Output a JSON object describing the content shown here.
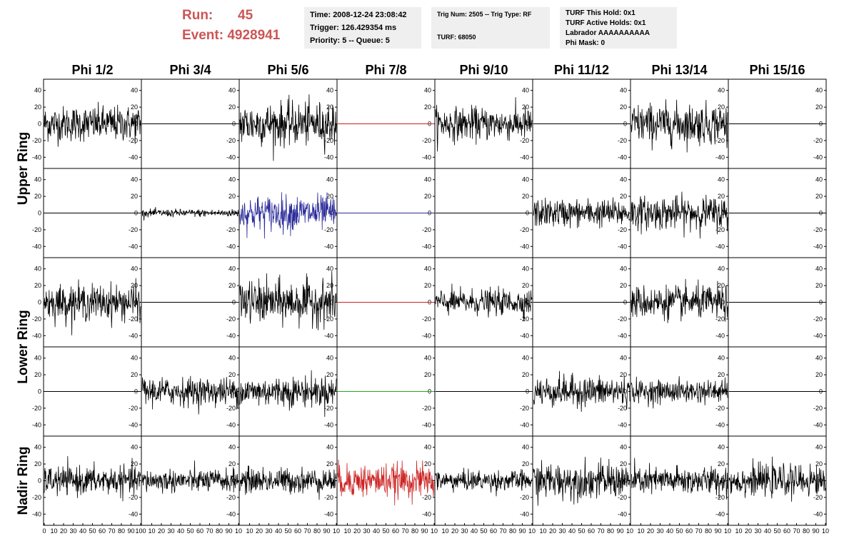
{
  "header": {
    "run_label": "Run:",
    "run_value": "45",
    "event_label": "Event:",
    "event_value": "4928941",
    "info_time": [
      "Time: 2008-12-24 23:08:42",
      "Trigger: 126.429354 ms",
      "Priority: 5 -- Queue: 5"
    ],
    "info_trig": [
      "Trig Num: 2505 -- Trig Type: RF",
      "",
      "TURF: 68050"
    ],
    "info_turf": [
      "TURF This Hold: 0x1",
      "TURF Active Holds: 0x1",
      "Labrador AAAAAAAAAA",
      "Phi Mask: 0"
    ]
  },
  "colors": {
    "header_red": "#cc5555",
    "info_bg": "#efefef",
    "trace_default": "#000000",
    "trace_blue": "#2b2b9a",
    "trace_red": "#cc2222",
    "trace_green": "#22aa22"
  },
  "chart_data": {
    "type": "line",
    "columns": [
      "Phi 1/2",
      "Phi 3/4",
      "Phi 5/6",
      "Phi 7/8",
      "Phi 9/10",
      "Phi 11/12",
      "Phi 13/14",
      "Phi 15/16"
    ],
    "rows": [
      "Upper Ring",
      "",
      "Lower Ring",
      "",
      "Nadir Ring"
    ],
    "row_labels": [
      {
        "text": "Upper Ring",
        "spans": [
          0,
          1
        ]
      },
      {
        "text": "Lower Ring",
        "spans": [
          2,
          3
        ]
      },
      {
        "text": "Nadir Ring",
        "spans": [
          4,
          4
        ]
      }
    ],
    "xlim": [
      0,
      100
    ],
    "ylim": [
      -50,
      50
    ],
    "ytick_labels": [
      "40",
      "20",
      "0",
      "-20",
      "-40"
    ],
    "xtick_labels_first": [
      "0",
      "10",
      "20",
      "30",
      "40",
      "50",
      "60",
      "70",
      "80",
      "90",
      "100"
    ],
    "xtick_labels_other": [
      "10",
      "20",
      "30",
      "40",
      "50",
      "60",
      "70",
      "80",
      "90",
      "10"
    ],
    "panels": [
      [
        {
          "amp": 14,
          "color": "black"
        },
        {
          "amp": 0,
          "color": "black"
        },
        {
          "amp": 17,
          "color": "black"
        },
        {
          "amp": 0,
          "color": "red"
        },
        {
          "amp": 13,
          "color": "black"
        },
        {
          "amp": 0,
          "color": "black"
        },
        {
          "amp": 16,
          "color": "black"
        },
        {
          "amp": 0,
          "color": "black"
        }
      ],
      [
        {
          "amp": 0,
          "color": "black"
        },
        {
          "amp": 3,
          "color": "black"
        },
        {
          "amp": 14,
          "color": "blue"
        },
        {
          "amp": 0,
          "color": "blue"
        },
        {
          "amp": 0,
          "color": "black"
        },
        {
          "amp": 11,
          "color": "black"
        },
        {
          "amp": 13,
          "color": "black"
        },
        {
          "amp": 0,
          "color": "black"
        }
      ],
      [
        {
          "amp": 14,
          "color": "black"
        },
        {
          "amp": 0,
          "color": "black"
        },
        {
          "amp": 17,
          "color": "black"
        },
        {
          "amp": 0,
          "color": "red"
        },
        {
          "amp": 10,
          "color": "black"
        },
        {
          "amp": 0,
          "color": "black"
        },
        {
          "amp": 13,
          "color": "black"
        },
        {
          "amp": 0,
          "color": "black"
        }
      ],
      [
        {
          "amp": 0,
          "color": "black"
        },
        {
          "amp": 11,
          "color": "black"
        },
        {
          "amp": 12,
          "color": "black"
        },
        {
          "amp": 0,
          "color": "green"
        },
        {
          "amp": 0,
          "color": "black"
        },
        {
          "amp": 12,
          "color": "black"
        },
        {
          "amp": 9,
          "color": "black"
        },
        {
          "amp": 0,
          "color": "black"
        }
      ],
      [
        {
          "amp": 11,
          "color": "black"
        },
        {
          "amp": 9,
          "color": "black"
        },
        {
          "amp": 10,
          "color": "black"
        },
        {
          "amp": 13,
          "color": "red"
        },
        {
          "amp": 8,
          "color": "black"
        },
        {
          "amp": 14,
          "color": "black"
        },
        {
          "amp": 11,
          "color": "black"
        },
        {
          "amp": 12,
          "color": "black"
        }
      ]
    ]
  }
}
